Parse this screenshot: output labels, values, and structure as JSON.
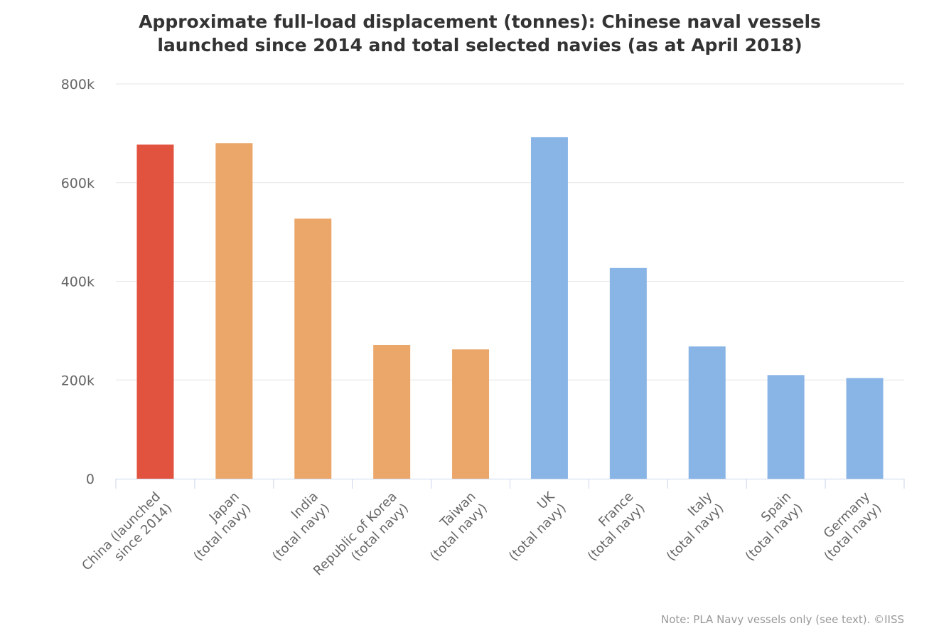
{
  "chart_data": {
    "type": "bar",
    "title_lines": [
      "Approximate full-load displacement (tonnes): Chinese naval vessels",
      "launched since 2014 and total selected navies (as at April 2018)"
    ],
    "ylim": [
      0,
      800000
    ],
    "yticks": [
      {
        "value": 0,
        "label": "0"
      },
      {
        "value": 200000,
        "label": "200k"
      },
      {
        "value": 400000,
        "label": "400k"
      },
      {
        "value": 600000,
        "label": "600k"
      },
      {
        "value": 800000,
        "label": "800k"
      }
    ],
    "grid": true,
    "categories": [
      [
        "China (launched",
        "since 2014)"
      ],
      [
        "Japan",
        "(total navy)"
      ],
      [
        "India",
        "(total navy)"
      ],
      [
        "Republic of Korea",
        "(total navy)"
      ],
      [
        "Taiwan",
        "(total navy)"
      ],
      [
        "UK",
        "(total navy)"
      ],
      [
        "France",
        "(total navy)"
      ],
      [
        "Italy",
        "(total navy)"
      ],
      [
        "Spain",
        "(total navy)"
      ],
      [
        "Germany",
        "(total navy)"
      ]
    ],
    "values": [
      677000,
      680000,
      527000,
      271000,
      262000,
      692000,
      427000,
      268000,
      210000,
      204000
    ],
    "colors": [
      "#e2533f",
      "#eba66a",
      "#eba66a",
      "#eba66a",
      "#eba66a",
      "#89b4e6",
      "#89b4e6",
      "#89b4e6",
      "#89b4e6",
      "#89b4e6"
    ],
    "note": "Note: PLA Navy vessels only (see text). ©IISS"
  }
}
